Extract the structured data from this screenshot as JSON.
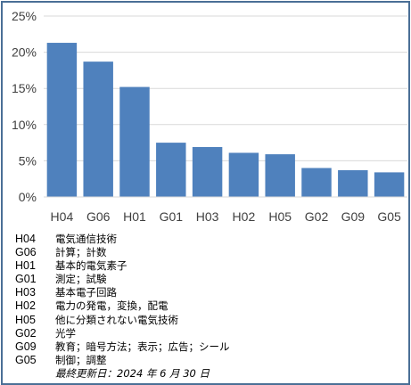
{
  "chart_data": {
    "type": "bar",
    "categories": [
      "H04",
      "G06",
      "H01",
      "G01",
      "H03",
      "H02",
      "H05",
      "G02",
      "G09",
      "G05"
    ],
    "values": [
      21.3,
      18.7,
      15.2,
      7.5,
      6.9,
      6.1,
      5.9,
      4.0,
      3.7,
      3.4
    ],
    "ylim": [
      0,
      25
    ],
    "y_ticks": [
      "0%",
      "5%",
      "10%",
      "15%",
      "20%",
      "25%"
    ],
    "y_tick_values": [
      0,
      5,
      10,
      15,
      20,
      25
    ],
    "grid": true,
    "bar_color": "#4f81bd",
    "title": "",
    "xlabel": "",
    "ylabel": ""
  },
  "legend": [
    {
      "code": "H04",
      "desc": "電気通信技術"
    },
    {
      "code": "G06",
      "desc": "計算；計数"
    },
    {
      "code": "H01",
      "desc": "基本的電気素子"
    },
    {
      "code": "G01",
      "desc": "測定；試験"
    },
    {
      "code": "H03",
      "desc": "基本電子回路"
    },
    {
      "code": "H02",
      "desc": "電力の発電，変換，配電"
    },
    {
      "code": "H05",
      "desc": "他に分類されない電気技術"
    },
    {
      "code": "G02",
      "desc": "光学"
    },
    {
      "code": "G09",
      "desc": "教育；暗号方法；表示；広告；シール"
    },
    {
      "code": "G05",
      "desc": "制御；調整"
    }
  ],
  "last_updated": "最終更新日：2024 年 6 月 30 日"
}
